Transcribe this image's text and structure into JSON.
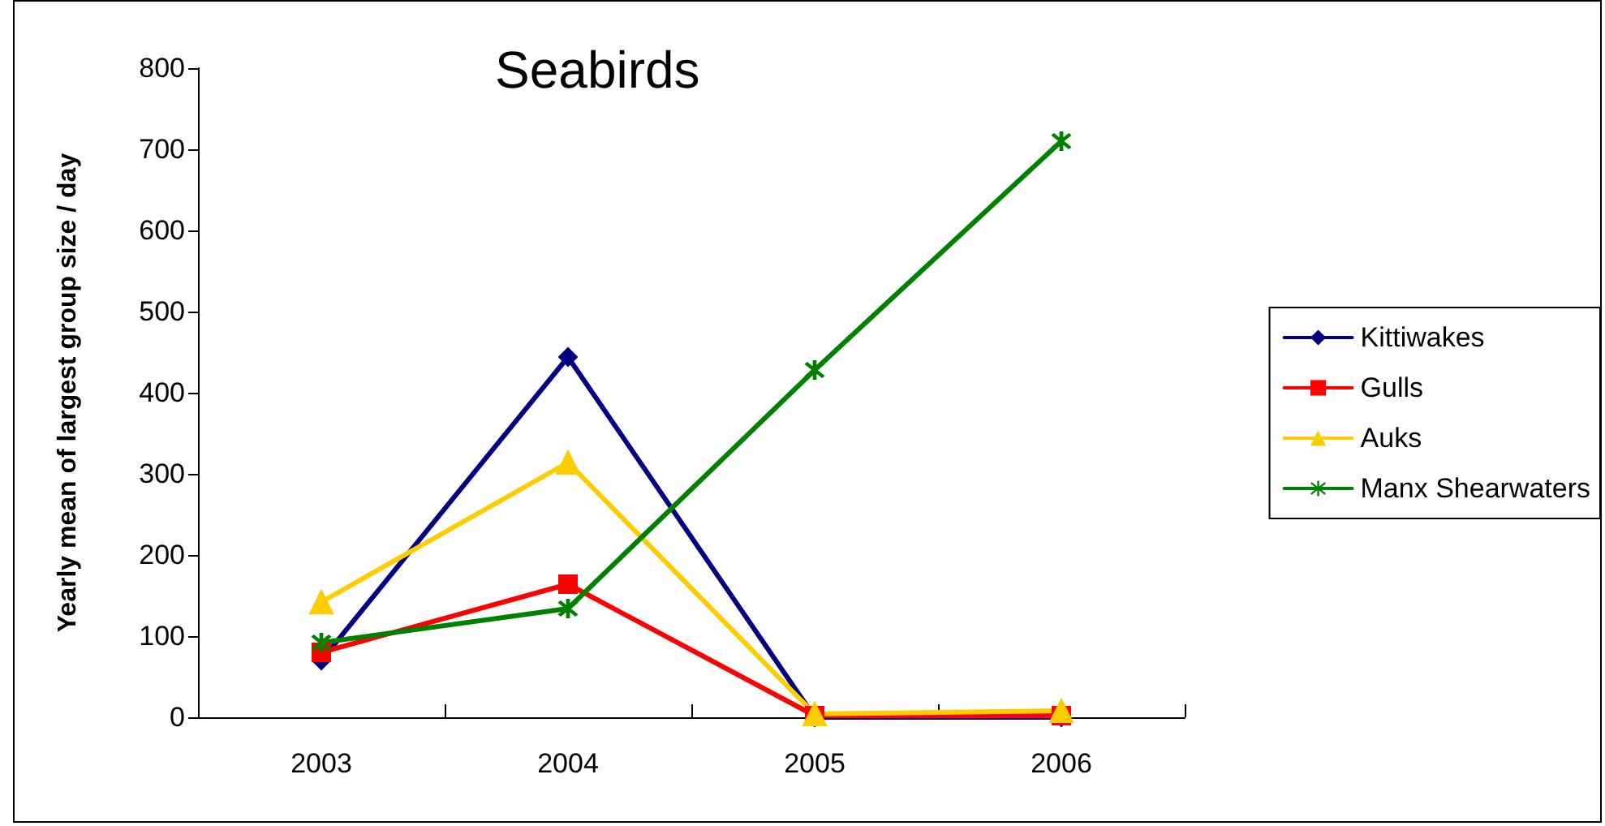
{
  "chart_data": {
    "type": "line",
    "title": "Seabirds",
    "ylabel": "Yearly mean of largest group size / day",
    "categories": [
      "2003",
      "2004",
      "2005",
      "2006"
    ],
    "series": [
      {
        "name": "Kittiwakes",
        "color": "#000080",
        "marker": "diamond",
        "values": [
          70,
          444,
          0,
          0
        ]
      },
      {
        "name": "Gulls",
        "color": "#ff0000",
        "marker": "square",
        "values": [
          80,
          164,
          2,
          2
        ]
      },
      {
        "name": "Auks",
        "color": "#ffcc00",
        "marker": "triangle",
        "values": [
          142,
          314,
          4,
          8
        ]
      },
      {
        "name": "Manx Shearwaters",
        "color": "#008000",
        "marker": "cross",
        "values": [
          92,
          134,
          428,
          710
        ]
      }
    ],
    "ylim": [
      0,
      800
    ],
    "yticks": [
      0,
      100,
      200,
      300,
      400,
      500,
      600,
      700,
      800
    ],
    "grid": false,
    "legend": "right",
    "line_style": "solid"
  }
}
